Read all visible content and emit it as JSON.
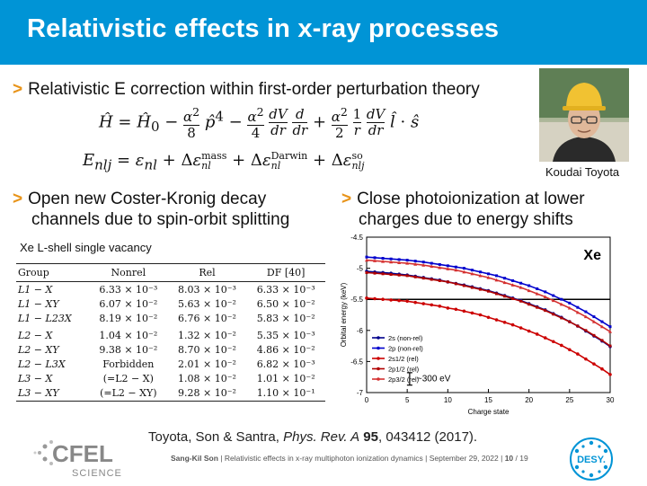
{
  "title": "Relativistic effects in x-ray processes",
  "bullets": {
    "b1": "Relativistic E correction within first-order perturbation theory",
    "b2_line1": "Open new Coster-Kronig decay",
    "b2_line2": "channels due to spin-orbit splitting",
    "b3_line1": "Close photoionization at lower",
    "b3_line2": "charges due to energy shifts"
  },
  "equations": {
    "hamiltonian": "Ĥ = Ĥ₀ − (α²/8) p̂⁴ − (α²/4)(dV/dr)(d/dr) + (α²/2)(1/r)(dV/dr) l̂ · ŝ",
    "energy": "E_nlj = ε_nl + Δε_nl^mass + Δε_nl^Darwin + Δε_nlj^so"
  },
  "photo_caption": "Koudai Toyota",
  "table": {
    "title": "Xe L-shell single vacancy",
    "headers": [
      "Group",
      "Nonrel",
      "Rel",
      "DF [40]"
    ],
    "rows": [
      [
        "L1 − X",
        "6.33 × 10⁻³",
        "8.03 × 10⁻³",
        "6.33 × 10⁻³"
      ],
      [
        "L1 − XY",
        "6.07 × 10⁻²",
        "5.63 × 10⁻²",
        "6.50 × 10⁻²"
      ],
      [
        "L1 − L23X",
        "8.19 × 10⁻²",
        "6.76 × 10⁻²",
        "5.83 × 10⁻²"
      ],
      [
        "L2 − X",
        "1.04 × 10⁻²",
        "1.32 × 10⁻²",
        "5.35 × 10⁻³"
      ],
      [
        "L2 − XY",
        "9.38 × 10⁻²",
        "8.70 × 10⁻²",
        "4.86 × 10⁻²"
      ],
      [
        "L2 − L3X",
        "Forbidden",
        "2.01 × 10⁻²",
        "6.82 × 10⁻³"
      ],
      [
        "L3 − X",
        "(=L2 − X)",
        "1.08 × 10⁻²",
        "1.01 × 10⁻²"
      ],
      [
        "L3 − XY",
        "(=L2 − XY)",
        "9.28 × 10⁻²",
        "1.10 × 10⁻¹"
      ]
    ]
  },
  "chart_data": {
    "type": "line",
    "element_label": "Xe",
    "xlabel": "Charge state",
    "ylabel": "Orbital energy (keV)",
    "xlim": [
      0,
      30
    ],
    "ylim": [
      -7.0,
      -4.5
    ],
    "xticks": [
      0,
      5,
      10,
      15,
      20,
      25,
      30
    ],
    "yticks": [
      -4.5,
      -5.0,
      -5.5,
      -6.0,
      -6.5,
      -7.0
    ],
    "threshold": -5.5,
    "x": [
      0,
      1,
      2,
      3,
      4,
      5,
      6,
      7,
      8,
      9,
      10,
      11,
      12,
      13,
      14,
      15,
      16,
      17,
      18,
      19,
      20,
      21,
      22,
      23,
      24,
      25,
      26,
      27,
      28,
      29,
      30
    ],
    "series": [
      {
        "name": "2s (non-rel)",
        "color": "#00008b",
        "marker": "circle",
        "values": [
          -5.05,
          -5.06,
          -5.07,
          -5.08,
          -5.095,
          -5.11,
          -5.13,
          -5.15,
          -5.17,
          -5.19,
          -5.22,
          -5.245,
          -5.27,
          -5.3,
          -5.33,
          -5.36,
          -5.4,
          -5.44,
          -5.48,
          -5.52,
          -5.57,
          -5.62,
          -5.67,
          -5.73,
          -5.79,
          -5.86,
          -5.93,
          -6.01,
          -6.09,
          -6.17,
          -6.26
        ]
      },
      {
        "name": "2p (non-rel)",
        "color": "#0000cd",
        "marker": "square",
        "values": [
          -4.82,
          -4.83,
          -4.84,
          -4.85,
          -4.86,
          -4.87,
          -4.885,
          -4.9,
          -4.92,
          -4.94,
          -4.96,
          -4.98,
          -5.0,
          -5.03,
          -5.06,
          -5.09,
          -5.12,
          -5.16,
          -5.2,
          -5.24,
          -5.28,
          -5.33,
          -5.38,
          -5.44,
          -5.5,
          -5.56,
          -5.63,
          -5.7,
          -5.78,
          -5.86,
          -5.94
        ]
      },
      {
        "name": "2s1/2 (rel)",
        "color": "#cc0000",
        "marker": "circle",
        "values": [
          -5.48,
          -5.49,
          -5.5,
          -5.51,
          -5.52,
          -5.53,
          -5.55,
          -5.57,
          -5.59,
          -5.61,
          -5.64,
          -5.66,
          -5.69,
          -5.72,
          -5.75,
          -5.79,
          -5.83,
          -5.87,
          -5.91,
          -5.96,
          -6.01,
          -6.06,
          -6.12,
          -6.18,
          -6.24,
          -6.31,
          -6.38,
          -6.46,
          -6.54,
          -6.62,
          -6.71
        ]
      },
      {
        "name": "2p1/2 (rel)",
        "color": "#b00000",
        "marker": "square",
        "values": [
          -5.07,
          -5.08,
          -5.09,
          -5.1,
          -5.11,
          -5.12,
          -5.14,
          -5.16,
          -5.18,
          -5.2,
          -5.22,
          -5.25,
          -5.28,
          -5.31,
          -5.34,
          -5.37,
          -5.41,
          -5.45,
          -5.49,
          -5.53,
          -5.58,
          -5.63,
          -5.68,
          -5.74,
          -5.8,
          -5.86,
          -5.93,
          -6.0,
          -6.08,
          -6.16,
          -6.25
        ]
      },
      {
        "name": "2p3/2 (rel)",
        "color": "#d43030",
        "marker": "triangle",
        "values": [
          -4.87,
          -4.88,
          -4.89,
          -4.9,
          -4.91,
          -4.92,
          -4.935,
          -4.95,
          -4.97,
          -4.99,
          -5.01,
          -5.03,
          -5.06,
          -5.09,
          -5.12,
          -5.15,
          -5.19,
          -5.23,
          -5.27,
          -5.31,
          -5.36,
          -5.41,
          -5.46,
          -5.52,
          -5.58,
          -5.64,
          -5.71,
          -5.78,
          -5.86,
          -5.94,
          -6.02
        ]
      }
    ],
    "annotation": "~300 eV"
  },
  "citation": {
    "authors": "Toyota, Son & Santra,",
    "journal": "Phys. Rev. A",
    "volume": "95",
    "rest": ", 043412 (2017)."
  },
  "footer": {
    "author": "Sang-Kil Son",
    "talk": "| Relativistic effects in x-ray multiphoton ionization dynamics | September 29, 2022 |",
    "page": "10",
    "total": "/ 19"
  },
  "logos": {
    "cfel_main": "CFEL",
    "cfel_sub": "SCIENCE",
    "desy": "DESY."
  },
  "colors": {
    "header": "#0094d6",
    "bullet": "#e8941a"
  }
}
